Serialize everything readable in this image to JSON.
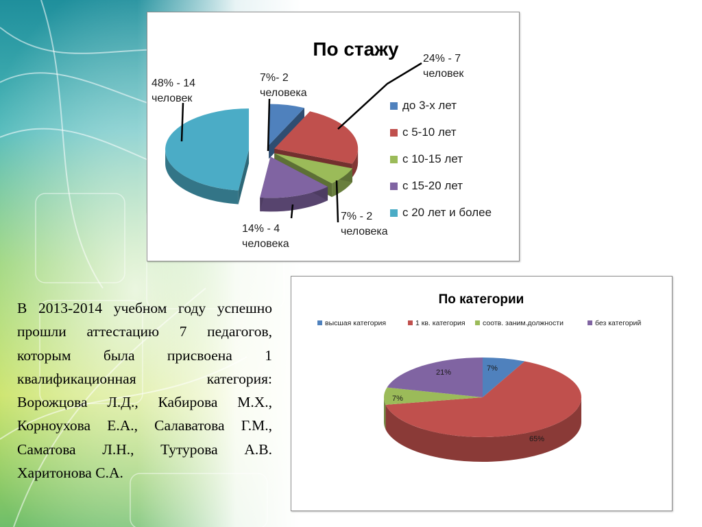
{
  "slide": {
    "body_text": "В 2013-2014 учебном году успешно прошли аттестацию 7 педагогов, которым была присвоена 1 квалификационная категория: Ворожцова Л.Д., Кабирова М.Х., Корноухова Е.А., Салаватова Г.М., Саматова Л.Н., Тутурова А.В. Харитонова С.А."
  },
  "chart_data": [
    {
      "type": "pie",
      "style": "3d-exploded",
      "title": "По стажу",
      "legend_position": "right",
      "categories": [
        "до 3-х лет",
        "с 5-10 лет",
        "с 10-15 лет",
        "с 15-20 лет",
        "с 20 лет  и более"
      ],
      "values": [
        7,
        24,
        7,
        14,
        48
      ],
      "counts": [
        2,
        7,
        2,
        4,
        14
      ],
      "colors": [
        "#4f81bd",
        "#c0504d",
        "#9bbb59",
        "#8064a2",
        "#4bacc6"
      ],
      "data_labels": [
        [
          "7%- 2",
          "человека"
        ],
        [
          "24% - 7",
          "человек"
        ],
        [
          "7% - 2",
          "человека"
        ],
        [
          "14% - 4",
          "человека"
        ],
        [
          "48% - 14",
          "человек"
        ]
      ]
    },
    {
      "type": "pie",
      "style": "3d",
      "title": "По категории",
      "legend_position": "top",
      "categories": [
        "высшая категория",
        "1 кв. категория",
        "соотв. заним.должности",
        "без категорий"
      ],
      "values": [
        7,
        65,
        7,
        21
      ],
      "colors": [
        "#4f81bd",
        "#c0504d",
        "#9bbb59",
        "#8064a2"
      ],
      "data_labels": [
        "7%",
        "65%",
        "7%",
        "21%"
      ]
    }
  ]
}
